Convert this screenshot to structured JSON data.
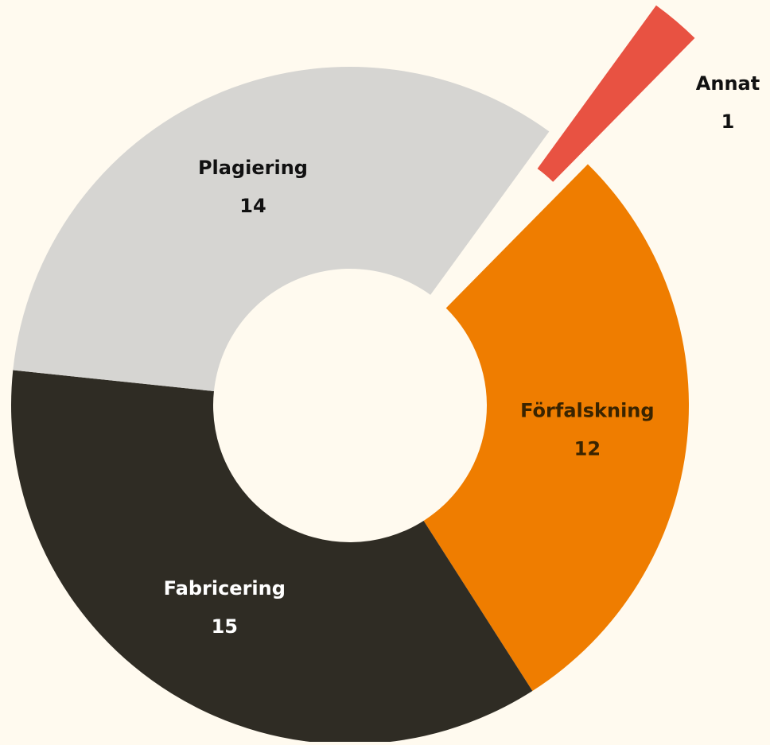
{
  "chart_data": {
    "type": "donut",
    "categories": [
      "Annat",
      "Förfalskning",
      "Fabricering",
      "Plagiering"
    ],
    "values": [
      1,
      12,
      15,
      14
    ],
    "colors": [
      "#e85242",
      "#ef7d00",
      "#2f2c24",
      "#d6d5d2"
    ],
    "exploded": [
      "Annat"
    ]
  }
}
